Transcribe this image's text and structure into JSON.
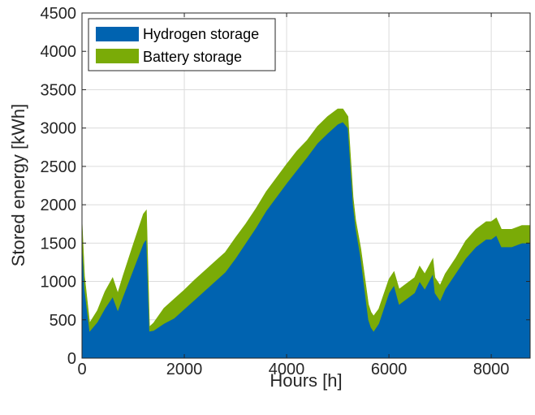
{
  "chart_data": {
    "type": "area",
    "xlabel": "Hours [h]",
    "ylabel": "Stored energy [kWh]",
    "xlim": [
      0,
      8760
    ],
    "ylim": [
      0,
      4500
    ],
    "xticks": [
      0,
      2000,
      4000,
      6000,
      8000
    ],
    "yticks": [
      0,
      500,
      1000,
      1500,
      2000,
      2500,
      3000,
      3500,
      4000,
      4500
    ],
    "grid": true,
    "stacked": true,
    "legend_position": "top-left",
    "x": [
      0,
      50,
      150,
      300,
      450,
      600,
      700,
      800,
      1000,
      1200,
      1260,
      1320,
      1400,
      1600,
      1800,
      2000,
      2200,
      2400,
      2600,
      2800,
      3000,
      3200,
      3400,
      3600,
      3800,
      4000,
      4200,
      4400,
      4600,
      4800,
      5000,
      5100,
      5200,
      5300,
      5350,
      5450,
      5600,
      5650,
      5700,
      5800,
      6000,
      6100,
      6200,
      6300,
      6500,
      6600,
      6700,
      6860,
      6900,
      7000,
      7100,
      7300,
      7500,
      7700,
      7900,
      8000,
      8100,
      8200,
      8400,
      8600,
      8760
    ],
    "series": [
      {
        "name": "Hydrogen storage",
        "color": "#0063b0",
        "values": [
          1550,
          900,
          350,
          470,
          650,
          800,
          620,
          800,
          1150,
          1500,
          1550,
          350,
          360,
          450,
          520,
          640,
          760,
          880,
          1000,
          1120,
          1300,
          1500,
          1700,
          1920,
          2100,
          2280,
          2450,
          2620,
          2800,
          2930,
          3050,
          3080,
          3000,
          2000,
          1700,
          1300,
          500,
          400,
          350,
          450,
          850,
          950,
          700,
          750,
          850,
          1000,
          900,
          1100,
          850,
          750,
          900,
          1100,
          1300,
          1450,
          1550,
          1550,
          1600,
          1450,
          1450,
          1500,
          1500
        ]
      },
      {
        "name": "Battery storage",
        "color": "#7aab07",
        "values": [
          250,
          170,
          110,
          150,
          220,
          250,
          230,
          270,
          330,
          380,
          380,
          60,
          100,
          200,
          250,
          250,
          260,
          260,
          260,
          260,
          270,
          250,
          250,
          250,
          250,
          250,
          250,
          220,
          220,
          220,
          200,
          170,
          150,
          100,
          100,
          130,
          200,
          200,
          200,
          190,
          180,
          180,
          200,
          200,
          200,
          200,
          200,
          200,
          200,
          200,
          200,
          200,
          230,
          230,
          230,
          230,
          230,
          230,
          230,
          230,
          230
        ]
      }
    ]
  }
}
